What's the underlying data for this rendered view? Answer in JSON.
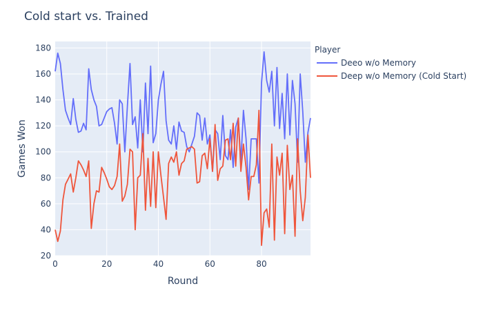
{
  "chart_data": {
    "type": "line",
    "title": "Cold start vs. Trained",
    "xlabel": "Round",
    "ylabel": "Games Won",
    "xlim": [
      0,
      99
    ],
    "ylim": [
      20,
      185
    ],
    "xticks": [
      0,
      20,
      40,
      60,
      80
    ],
    "yticks": [
      20,
      40,
      60,
      80,
      100,
      120,
      140,
      160,
      180
    ],
    "grid": true,
    "legend": {
      "title": "Player",
      "position": "right"
    },
    "series": [
      {
        "name": "Deeo w/o Memory",
        "color": "#636efa",
        "x": [
          0,
          1,
          2,
          3,
          4,
          5,
          6,
          7,
          8,
          9,
          10,
          11,
          12,
          13,
          14,
          15,
          16,
          17,
          18,
          19,
          20,
          21,
          22,
          23,
          24,
          25,
          26,
          27,
          28,
          29,
          30,
          31,
          32,
          33,
          34,
          35,
          36,
          37,
          38,
          39,
          40,
          41,
          42,
          43,
          44,
          45,
          46,
          47,
          48,
          49,
          50,
          51,
          52,
          53,
          54,
          55,
          56,
          57,
          58,
          59,
          60,
          61,
          62,
          63,
          64,
          65,
          66,
          67,
          68,
          69,
          70,
          71,
          72,
          73,
          74,
          75,
          76,
          77,
          78,
          79,
          80,
          81,
          82,
          83,
          84,
          85,
          86,
          87,
          88,
          89,
          90,
          91,
          92,
          93,
          94,
          95,
          96,
          97,
          98,
          99
        ],
        "values": [
          162,
          176,
          168,
          148,
          132,
          126,
          121,
          141,
          125,
          115,
          116,
          122,
          117,
          164,
          148,
          140,
          135,
          120,
          121,
          126,
          131,
          133,
          134,
          122,
          106,
          140,
          137,
          100,
          135,
          168,
          121,
          127,
          103,
          140,
          100,
          153,
          114,
          166,
          107,
          114,
          140,
          152,
          162,
          124,
          109,
          106,
          120,
          102,
          123,
          116,
          115,
          104,
          100,
          106,
          112,
          130,
          128,
          109,
          126,
          106,
          113,
          85,
          117,
          114,
          94,
          128,
          97,
          94,
          117,
          88,
          119,
          126,
          92,
          132,
          110,
          71,
          110,
          110,
          110,
          76,
          153,
          177,
          155,
          146,
          162,
          120,
          165,
          118,
          145,
          110,
          160,
          113,
          155,
          137,
          92,
          160,
          131,
          92,
          115,
          126
        ]
      },
      {
        "name": "Deep w/o Memory (Cold Start)",
        "color": "#ef553b",
        "x": [
          0,
          1,
          2,
          3,
          4,
          5,
          6,
          7,
          8,
          9,
          10,
          11,
          12,
          13,
          14,
          15,
          16,
          17,
          18,
          19,
          20,
          21,
          22,
          23,
          24,
          25,
          26,
          27,
          28,
          29,
          30,
          31,
          32,
          33,
          34,
          35,
          36,
          37,
          38,
          39,
          40,
          41,
          42,
          43,
          44,
          45,
          46,
          47,
          48,
          49,
          50,
          51,
          52,
          53,
          54,
          55,
          56,
          57,
          58,
          59,
          60,
          61,
          62,
          63,
          64,
          65,
          66,
          67,
          68,
          69,
          70,
          71,
          72,
          73,
          74,
          75,
          76,
          77,
          78,
          79,
          80,
          81,
          82,
          83,
          84,
          85,
          86,
          87,
          88,
          89,
          90,
          91,
          92,
          93,
          94,
          95,
          96,
          97,
          98,
          99
        ],
        "values": [
          40,
          31,
          39,
          63,
          75,
          79,
          83,
          69,
          80,
          93,
          90,
          86,
          81,
          93,
          41,
          60,
          70,
          69,
          88,
          84,
          79,
          73,
          71,
          74,
          81,
          106,
          62,
          66,
          75,
          102,
          100,
          40,
          80,
          82,
          114,
          55,
          95,
          58,
          100,
          57,
          100,
          82,
          65,
          48,
          91,
          96,
          92,
          100,
          82,
          91,
          93,
          102,
          103,
          104,
          102,
          76,
          77,
          97,
          99,
          87,
          110,
          85,
          121,
          78,
          87,
          89,
          109,
          110,
          94,
          122,
          89,
          126,
          85,
          106,
          88,
          63,
          81,
          81,
          90,
          132,
          28,
          53,
          56,
          42,
          106,
          32,
          96,
          82,
          99,
          37,
          105,
          71,
          82,
          35,
          110,
          70,
          47,
          65,
          113,
          80
        ]
      }
    ]
  }
}
